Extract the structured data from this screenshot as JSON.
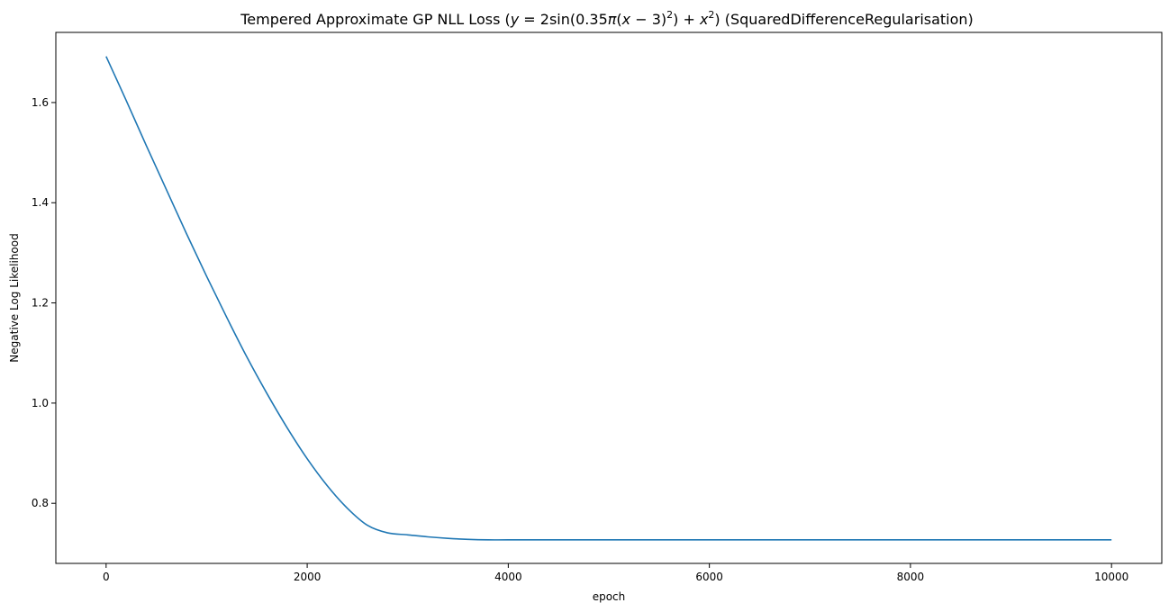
{
  "chart_data": {
    "type": "line",
    "title": "Tempered Approximate GP NLL Loss (y = 2sin(0.35π(x − 3)²) + x²) (SquaredDifferenceRegularisation)",
    "title_parts": {
      "prefix": "Tempered Approximate GP NLL Loss (",
      "y": "y",
      "eq": " = 2sin(0.35",
      "pi": "π",
      "open": "(",
      "x1": "x",
      "minus": " − 3)",
      "sq1": "2",
      "close": ") + ",
      "x2": "x",
      "sq2": "2",
      "suffix": ") (SquaredDifferenceRegularisation)"
    },
    "xlabel": "epoch",
    "ylabel": "Negative Log Likelihood",
    "xlim": [
      -500,
      10500
    ],
    "ylim": [
      0.68,
      1.74
    ],
    "xticks": [
      0,
      2000,
      4000,
      6000,
      8000,
      10000
    ],
    "xtick_labels": [
      "0",
      "2000",
      "4000",
      "6000",
      "8000",
      "10000"
    ],
    "yticks": [
      0.8,
      1.0,
      1.2,
      1.4,
      1.6
    ],
    "ytick_labels": [
      "0.8",
      "1.0",
      "1.2",
      "1.4",
      "1.6"
    ],
    "grid": false,
    "series": [
      {
        "color": "#1f77b4",
        "x": [
          0,
          200,
          400,
          600,
          800,
          1000,
          1200,
          1400,
          1600,
          1800,
          2000,
          2200,
          2400,
          2600,
          2800,
          3000,
          3200,
          3400,
          3600,
          3800,
          4000,
          4500,
          5000,
          6000,
          7000,
          8000,
          9000,
          10000
        ],
        "y": [
          1.692,
          1.604,
          1.514,
          1.426,
          1.338,
          1.253,
          1.171,
          1.092,
          1.019,
          0.951,
          0.889,
          0.835,
          0.79,
          0.756,
          0.741,
          0.737,
          0.733,
          0.73,
          0.728,
          0.727,
          0.727,
          0.727,
          0.727,
          0.727,
          0.727,
          0.727,
          0.727,
          0.727
        ]
      }
    ]
  }
}
